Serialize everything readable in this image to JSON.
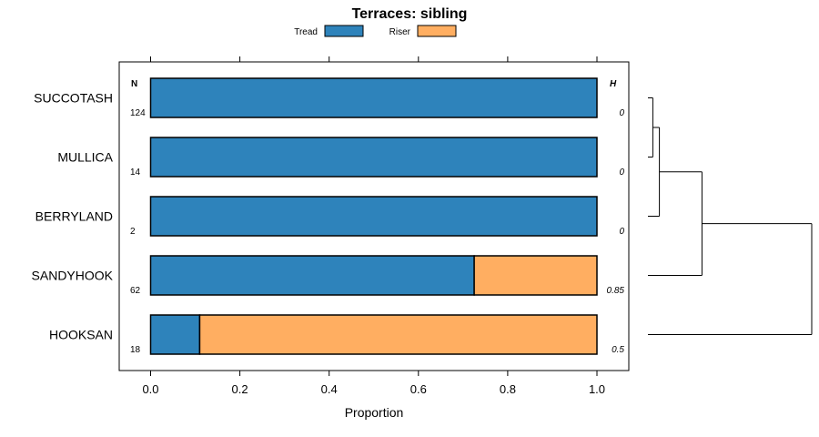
{
  "chart_data": {
    "type": "bar",
    "orientation": "horizontal",
    "stacked": true,
    "title": "Terraces: sibling",
    "xlabel": "Proportion",
    "ylabel": "",
    "xlim": [
      -0.07,
      1.07
    ],
    "x_ticks": [
      0.0,
      0.2,
      0.4,
      0.6,
      0.8,
      1.0
    ],
    "x_tick_labels": [
      "0.0",
      "0.2",
      "0.4",
      "0.6",
      "0.8",
      "1.0"
    ],
    "categories": [
      "SUCCOTASH",
      "MULLICA",
      "BERRYLAND",
      "SANDYHOOK",
      "HOOKSAN"
    ],
    "series": [
      {
        "name": "Tread",
        "color": "#2e83bb",
        "values": [
          1.0,
          1.0,
          1.0,
          0.725,
          0.11
        ]
      },
      {
        "name": "Riser",
        "color": "#ffae61",
        "values": [
          0.0,
          0.0,
          0.0,
          0.275,
          0.89
        ]
      }
    ],
    "n_header": "N",
    "n_values": [
      "124",
      "14",
      "2",
      "62",
      "18"
    ],
    "h_header": "H",
    "h_values": [
      "0",
      "0",
      "0",
      "0.85",
      "0.5"
    ],
    "legend_position": "top",
    "dendrogram": {
      "side": "right",
      "merges": [
        {
          "left": "SUCCOTASH",
          "right": "MULLICA",
          "height": 0.03
        },
        {
          "left": "cluster-1",
          "right": "BERRYLAND",
          "height": 0.07
        },
        {
          "left": "cluster-2",
          "right": "SANDYHOOK",
          "height": 0.33
        },
        {
          "left": "cluster-3",
          "right": "HOOKSAN",
          "height": 1.0
        }
      ]
    }
  }
}
